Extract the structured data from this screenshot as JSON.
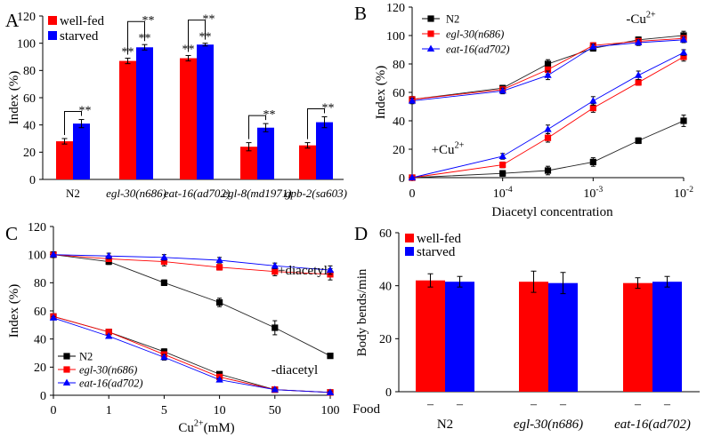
{
  "chart_data": [
    {
      "panel": "A",
      "type": "bar",
      "ylabel": "Index (%)",
      "ylim": [
        0,
        120
      ],
      "yticks": [
        0,
        20,
        40,
        60,
        80,
        100,
        120
      ],
      "categories": [
        "N2",
        "egl-30(n686)",
        "eat-16(ad702)",
        "egl-8(md1971)",
        "gpb-2(sa603)"
      ],
      "categories_italic": [
        false,
        true,
        true,
        true,
        true
      ],
      "legend_position": "top-left",
      "series": [
        {
          "name": "well-fed",
          "color": "#ff0000",
          "values": [
            28,
            87,
            89,
            24,
            25
          ],
          "errors": [
            2,
            2,
            2,
            3,
            2
          ]
        },
        {
          "name": "starved",
          "color": "#0000ff",
          "values": [
            41,
            97,
            99,
            38,
            42
          ],
          "errors": [
            3,
            2,
            1,
            3,
            4
          ]
        }
      ],
      "annotations": [
        {
          "text": "**",
          "kind": "bracket",
          "category": 0
        },
        {
          "text": "**",
          "kind": "bracket",
          "category": 1
        },
        {
          "text": "**",
          "kind": "bracket",
          "category": 2
        },
        {
          "text": "**",
          "kind": "bracket",
          "category": 3
        },
        {
          "text": "**",
          "kind": "bracket",
          "category": 4
        },
        {
          "text": "**",
          "kind": "bar",
          "category": 1,
          "series": 0
        },
        {
          "text": "**",
          "kind": "bar",
          "category": 1,
          "series": 1
        },
        {
          "text": "**",
          "kind": "bar",
          "category": 2,
          "series": 0
        },
        {
          "text": "**",
          "kind": "bar",
          "category": 2,
          "series": 1
        }
      ]
    },
    {
      "panel": "B",
      "type": "line",
      "xlabel": "Diacetyl concentration",
      "ylabel": "Index (%)",
      "ylim": [
        0,
        120
      ],
      "yticks": [
        0,
        20,
        40,
        60,
        80,
        100,
        120
      ],
      "xticks": [
        {
          "at": 0,
          "label": "0"
        },
        {
          "at": 1,
          "label": "10",
          "sup": "-4"
        },
        {
          "at": 2,
          "label": "10",
          "sup": "-3"
        },
        {
          "at": 3,
          "label": "10",
          "sup": "-2"
        }
      ],
      "x": [
        0,
        1,
        1.5,
        2,
        2.5,
        3
      ],
      "legend_position": "top-left",
      "legend": [
        {
          "name": "N2",
          "italic": false,
          "color": "#000000",
          "marker": "square"
        },
        {
          "name": "egl-30(n686)",
          "italic": true,
          "color": "#ff0000",
          "marker": "square"
        },
        {
          "name": "eat-16(ad702)",
          "italic": true,
          "color": "#0000ff",
          "marker": "triangle"
        }
      ],
      "groups": [
        {
          "label": "-Cu",
          "sup": "2+",
          "series": [
            {
              "name": "N2",
              "values": [
                55,
                63,
                80,
                91,
                97,
                100
              ],
              "errors": [
                2,
                2,
                3,
                2,
                2,
                3
              ]
            },
            {
              "name": "egl-30(n686)",
              "values": [
                55,
                62,
                76,
                93,
                96,
                98
              ],
              "errors": [
                2,
                2,
                3,
                2,
                2,
                2
              ]
            },
            {
              "name": "eat-16(ad702)",
              "values": [
                54,
                61,
                72,
                92,
                95,
                97
              ],
              "errors": [
                2,
                2,
                3,
                2,
                2,
                2
              ]
            }
          ]
        },
        {
          "label": "+Cu",
          "sup": "2+",
          "series": [
            {
              "name": "N2",
              "values": [
                0,
                3,
                5,
                11,
                26,
                40
              ],
              "errors": [
                0,
                2,
                3,
                3,
                2,
                4
              ]
            },
            {
              "name": "egl-30(n686)",
              "values": [
                0,
                9,
                28,
                49,
                67,
                85
              ],
              "errors": [
                0,
                2,
                3,
                3,
                2,
                3
              ]
            },
            {
              "name": "eat-16(ad702)",
              "values": [
                0,
                15,
                34,
                54,
                72,
                88
              ],
              "errors": [
                0,
                2,
                3,
                3,
                3,
                2
              ]
            }
          ]
        }
      ]
    },
    {
      "panel": "C",
      "type": "line",
      "xlabel": "Cu",
      "xlabel_sup": "2+",
      "xlabel_suffix": "(mM)",
      "ylabel": "Index (%)",
      "ylim": [
        0,
        120
      ],
      "yticks": [
        0,
        20,
        40,
        60,
        80,
        100,
        120
      ],
      "categories": [
        "0",
        "1",
        "5",
        "10",
        "50",
        "100"
      ],
      "legend_position": "bottom-left",
      "legend": [
        {
          "name": "N2",
          "italic": false,
          "color": "#000000",
          "marker": "square"
        },
        {
          "name": "egl-30(n686)",
          "italic": true,
          "color": "#ff0000",
          "marker": "square"
        },
        {
          "name": "eat-16(ad702)",
          "italic": true,
          "color": "#0000ff",
          "marker": "triangle"
        }
      ],
      "groups": [
        {
          "label": "+diacetyl",
          "series": [
            {
              "name": "N2",
              "values": [
                100,
                95,
                80,
                66,
                48,
                28
              ],
              "errors": [
                2,
                2,
                2,
                3,
                5,
                1
              ]
            },
            {
              "name": "egl-30(n686)",
              "values": [
                100,
                97,
                95,
                91,
                88,
                86
              ],
              "errors": [
                2,
                2,
                3,
                2,
                3,
                4
              ]
            },
            {
              "name": "eat-16(ad702)",
              "values": [
                100,
                99,
                98,
                96,
                92,
                89
              ],
              "errors": [
                2,
                2,
                2,
                2,
                2,
                3
              ]
            }
          ]
        },
        {
          "label": "-diacetyl",
          "series": [
            {
              "name": "N2",
              "values": [
                56,
                45,
                31,
                15,
                4,
                2
              ],
              "errors": [
                1,
                1,
                2,
                1,
                1,
                1
              ]
            },
            {
              "name": "egl-30(n686)",
              "values": [
                56,
                45,
                29,
                13,
                4,
                2
              ],
              "errors": [
                1,
                1,
                2,
                1,
                1,
                1
              ]
            },
            {
              "name": "eat-16(ad702)",
              "values": [
                55,
                42,
                27,
                11,
                4,
                2
              ],
              "errors": [
                1,
                1,
                2,
                1,
                1,
                1
              ]
            }
          ]
        }
      ]
    },
    {
      "panel": "D",
      "type": "bar",
      "ylabel": "Body bends/min",
      "ylim": [
        0,
        60
      ],
      "yticks": [
        0,
        20,
        40,
        60
      ],
      "categories": [
        "N2",
        "egl-30(n686)",
        "eat-16(ad702)"
      ],
      "categories_italic": [
        false,
        true,
        true
      ],
      "row_label": "Food",
      "food_marks": [
        "–",
        "–",
        "–",
        "–",
        "–",
        "–"
      ],
      "legend_position": "top-left",
      "series": [
        {
          "name": "well-fed",
          "color": "#ff0000",
          "values": [
            42,
            41.5,
            41
          ],
          "errors": [
            2.5,
            4,
            2
          ]
        },
        {
          "name": "starved",
          "color": "#0000ff",
          "values": [
            41.5,
            41,
            41.5
          ],
          "errors": [
            2,
            4,
            2
          ]
        }
      ]
    }
  ]
}
